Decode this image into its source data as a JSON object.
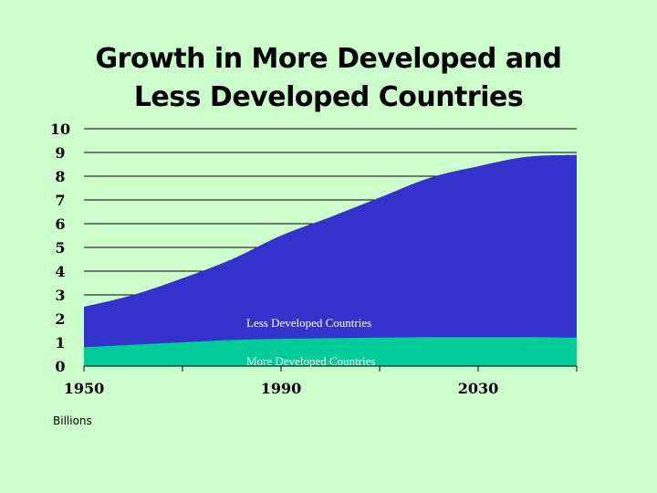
{
  "title_line1": "Growth in More Developed and",
  "title_line2": "Less Developed Countries",
  "chart_data": {
    "type": "area",
    "stacked": true,
    "title": "Growth in More Developed and Less Developed Countries",
    "ylabel": "Billions",
    "xlim": [
      1950,
      2050
    ],
    "ylim": [
      0,
      10
    ],
    "x_ticks": [
      1950,
      1990,
      2030
    ],
    "y_ticks": [
      0,
      1,
      2,
      3,
      4,
      5,
      6,
      7,
      8,
      9,
      10
    ],
    "x": [
      1950,
      1960,
      1970,
      1980,
      1990,
      2000,
      2010,
      2020,
      2030,
      2040,
      2050
    ],
    "series": [
      {
        "name": "More Developed Countries",
        "color": "#00cc99",
        "values": [
          0.8,
          0.9,
          1.0,
          1.1,
          1.15,
          1.18,
          1.2,
          1.22,
          1.22,
          1.22,
          1.2
        ]
      },
      {
        "name": "Less Developed Countries",
        "color": "#3333cc",
        "values": [
          1.7,
          2.1,
          2.7,
          3.4,
          4.35,
          5.1,
          5.9,
          6.7,
          7.2,
          7.6,
          7.7
        ]
      }
    ]
  },
  "colors": {
    "background": "#ccffcc",
    "more_developed": "#00cc99",
    "less_developed": "#3333cc"
  }
}
